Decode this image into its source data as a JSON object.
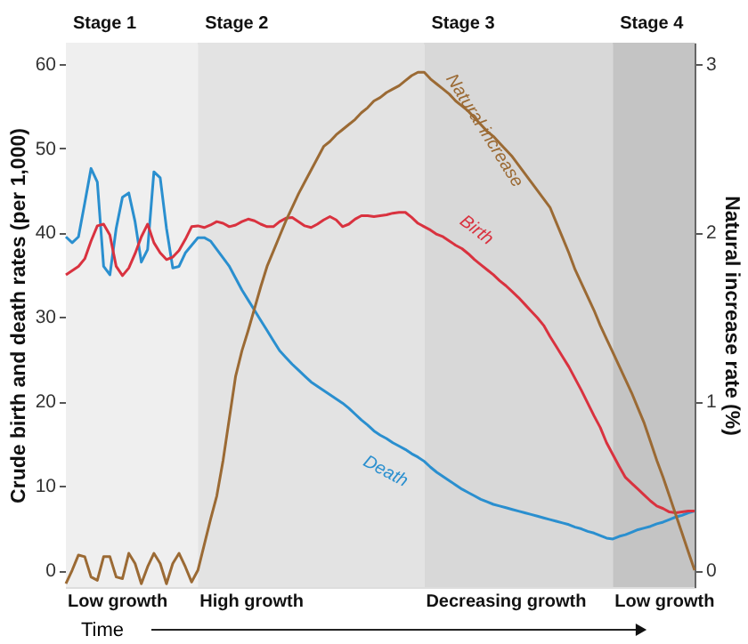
{
  "chart_data": {
    "type": "line",
    "ylabel": "Crude birth and death rates (per 1,000)",
    "y2label": "Natural increase rate (%)",
    "xlabel": "Time",
    "categories": [
      null,
      null,
      null,
      null,
      null,
      null,
      null,
      null,
      null,
      null,
      null,
      null,
      null,
      null,
      null,
      null,
      null,
      null,
      null,
      null,
      null,
      null,
      null,
      null,
      null,
      null,
      null,
      null,
      null,
      null,
      null,
      null,
      null,
      null,
      null,
      null,
      null,
      null,
      null,
      null,
      null,
      null,
      null,
      null,
      null,
      null,
      null,
      null,
      null,
      null,
      null,
      null,
      null,
      null,
      null,
      null,
      null,
      null,
      null,
      null,
      null,
      null,
      null,
      null,
      null,
      null,
      null,
      null,
      null,
      null,
      null,
      null,
      null,
      null,
      null,
      null,
      null,
      null,
      null,
      null,
      null,
      null,
      null,
      null,
      null,
      null,
      null,
      null,
      null,
      null,
      null,
      null,
      null,
      null,
      null,
      null,
      null,
      null,
      null,
      null,
      null
    ],
    "ylim": [
      -2,
      62.5
    ],
    "yticks": [
      0,
      10,
      20,
      30,
      40,
      50,
      60
    ],
    "y2lim": [
      -0.1,
      3.125
    ],
    "y2ticks": [
      0,
      1,
      2,
      3
    ],
    "tick_labels": "y",
    "grid": false,
    "legend": false,
    "marker": "none",
    "line_style": "solid",
    "annotations": [
      "Stage 1",
      "Stage 2",
      "Stage 3",
      "Stage 4",
      "Low growth",
      "High growth",
      "Decreasing growth",
      "Low growth"
    ],
    "series": [
      {
        "name": "Death",
        "color": "#2a8fcf",
        "values": [
          39.5,
          38.8,
          39.5,
          43.5,
          47.6,
          46,
          36,
          35,
          40.5,
          44.2,
          44.7,
          41.3,
          36.5,
          38,
          47.2,
          46.5,
          40.5,
          35.8,
          36,
          37.6,
          38.5,
          39.4,
          39.4,
          39,
          38,
          37,
          36,
          34.6,
          33.2,
          32,
          30.8,
          29.6,
          28.4,
          27.2,
          26,
          25.2,
          24.4,
          23.7,
          23,
          22.3,
          21.8,
          21.3,
          20.8,
          20.3,
          19.8,
          19.2,
          18.5,
          17.8,
          17.2,
          16.5,
          16,
          15.6,
          15.1,
          14.7,
          14.3,
          13.8,
          13.4,
          12.9,
          12.2,
          11.6,
          11.1,
          10.6,
          10.1,
          9.6,
          9.2,
          8.8,
          8.4,
          8.1,
          7.8,
          7.6,
          7.4,
          7.2,
          7,
          6.8,
          6.6,
          6.4,
          6.2,
          6,
          5.8,
          5.6,
          5.4,
          5.1,
          4.9,
          4.6,
          4.4,
          4.1,
          3.8,
          3.7,
          4,
          4.2,
          4.5,
          4.8,
          5,
          5.2,
          5.5,
          5.7,
          6,
          6.3,
          6.5,
          6.8,
          7
        ]
      },
      {
        "name": "Birth",
        "color": "#d9323f",
        "values": [
          35,
          35.5,
          36,
          36.9,
          39,
          40.8,
          41,
          39.7,
          36,
          34.9,
          35.8,
          37.5,
          39.5,
          41,
          38.8,
          37.6,
          36.8,
          37.1,
          37.9,
          39.2,
          40.7,
          40.8,
          40.6,
          40.9,
          41.3,
          41.1,
          40.7,
          40.9,
          41.3,
          41.6,
          41.4,
          41,
          40.7,
          40.7,
          41.3,
          41.7,
          41.8,
          41.3,
          40.8,
          40.6,
          41,
          41.5,
          41.9,
          41.5,
          40.7,
          41,
          41.6,
          42,
          42,
          41.9,
          42,
          42.1,
          42.3,
          42.4,
          42.4,
          41.8,
          41.1,
          40.7,
          40.3,
          39.8,
          39.5,
          39,
          38.5,
          38.1,
          37.5,
          36.8,
          36.2,
          35.6,
          35,
          34.3,
          33.7,
          33,
          32.3,
          31.5,
          30.7,
          29.9,
          29,
          27.7,
          26.5,
          25.3,
          24.1,
          22.7,
          21.3,
          19.8,
          18.3,
          16.9,
          15.1,
          13.7,
          12.3,
          11,
          10.3,
          9.6,
          8.9,
          8.2,
          7.6,
          7.3,
          6.9,
          6.8,
          6.9,
          7,
          7
        ]
      },
      {
        "name": "Natural increase",
        "color": "#9b6a34",
        "axis": "y2",
        "values": [
          -0.08,
          0,
          0.09,
          0.08,
          -0.04,
          -0.06,
          0.08,
          0.08,
          -0.04,
          -0.05,
          0.1,
          0.04,
          -0.08,
          0.02,
          0.1,
          0.04,
          -0.08,
          0.04,
          0.1,
          0.02,
          -0.07,
          0,
          0.15,
          0.3,
          0.44,
          0.65,
          0.9,
          1.15,
          1.3,
          1.42,
          1.55,
          1.68,
          1.8,
          1.89,
          1.98,
          2.07,
          2.15,
          2.23,
          2.3,
          2.37,
          2.44,
          2.51,
          2.54,
          2.58,
          2.61,
          2.64,
          2.67,
          2.71,
          2.74,
          2.78,
          2.8,
          2.83,
          2.85,
          2.87,
          2.9,
          2.93,
          2.95,
          2.95,
          2.91,
          2.88,
          2.85,
          2.82,
          2.78,
          2.75,
          2.72,
          2.68,
          2.64,
          2.6,
          2.57,
          2.53,
          2.49,
          2.45,
          2.4,
          2.35,
          2.3,
          2.25,
          2.2,
          2.15,
          2.06,
          1.97,
          1.88,
          1.78,
          1.7,
          1.62,
          1.54,
          1.45,
          1.37,
          1.29,
          1.21,
          1.13,
          1.05,
          0.96,
          0.87,
          0.76,
          0.65,
          0.55,
          0.44,
          0.33,
          0.22,
          0.11,
          0
        ]
      }
    ]
  }
}
